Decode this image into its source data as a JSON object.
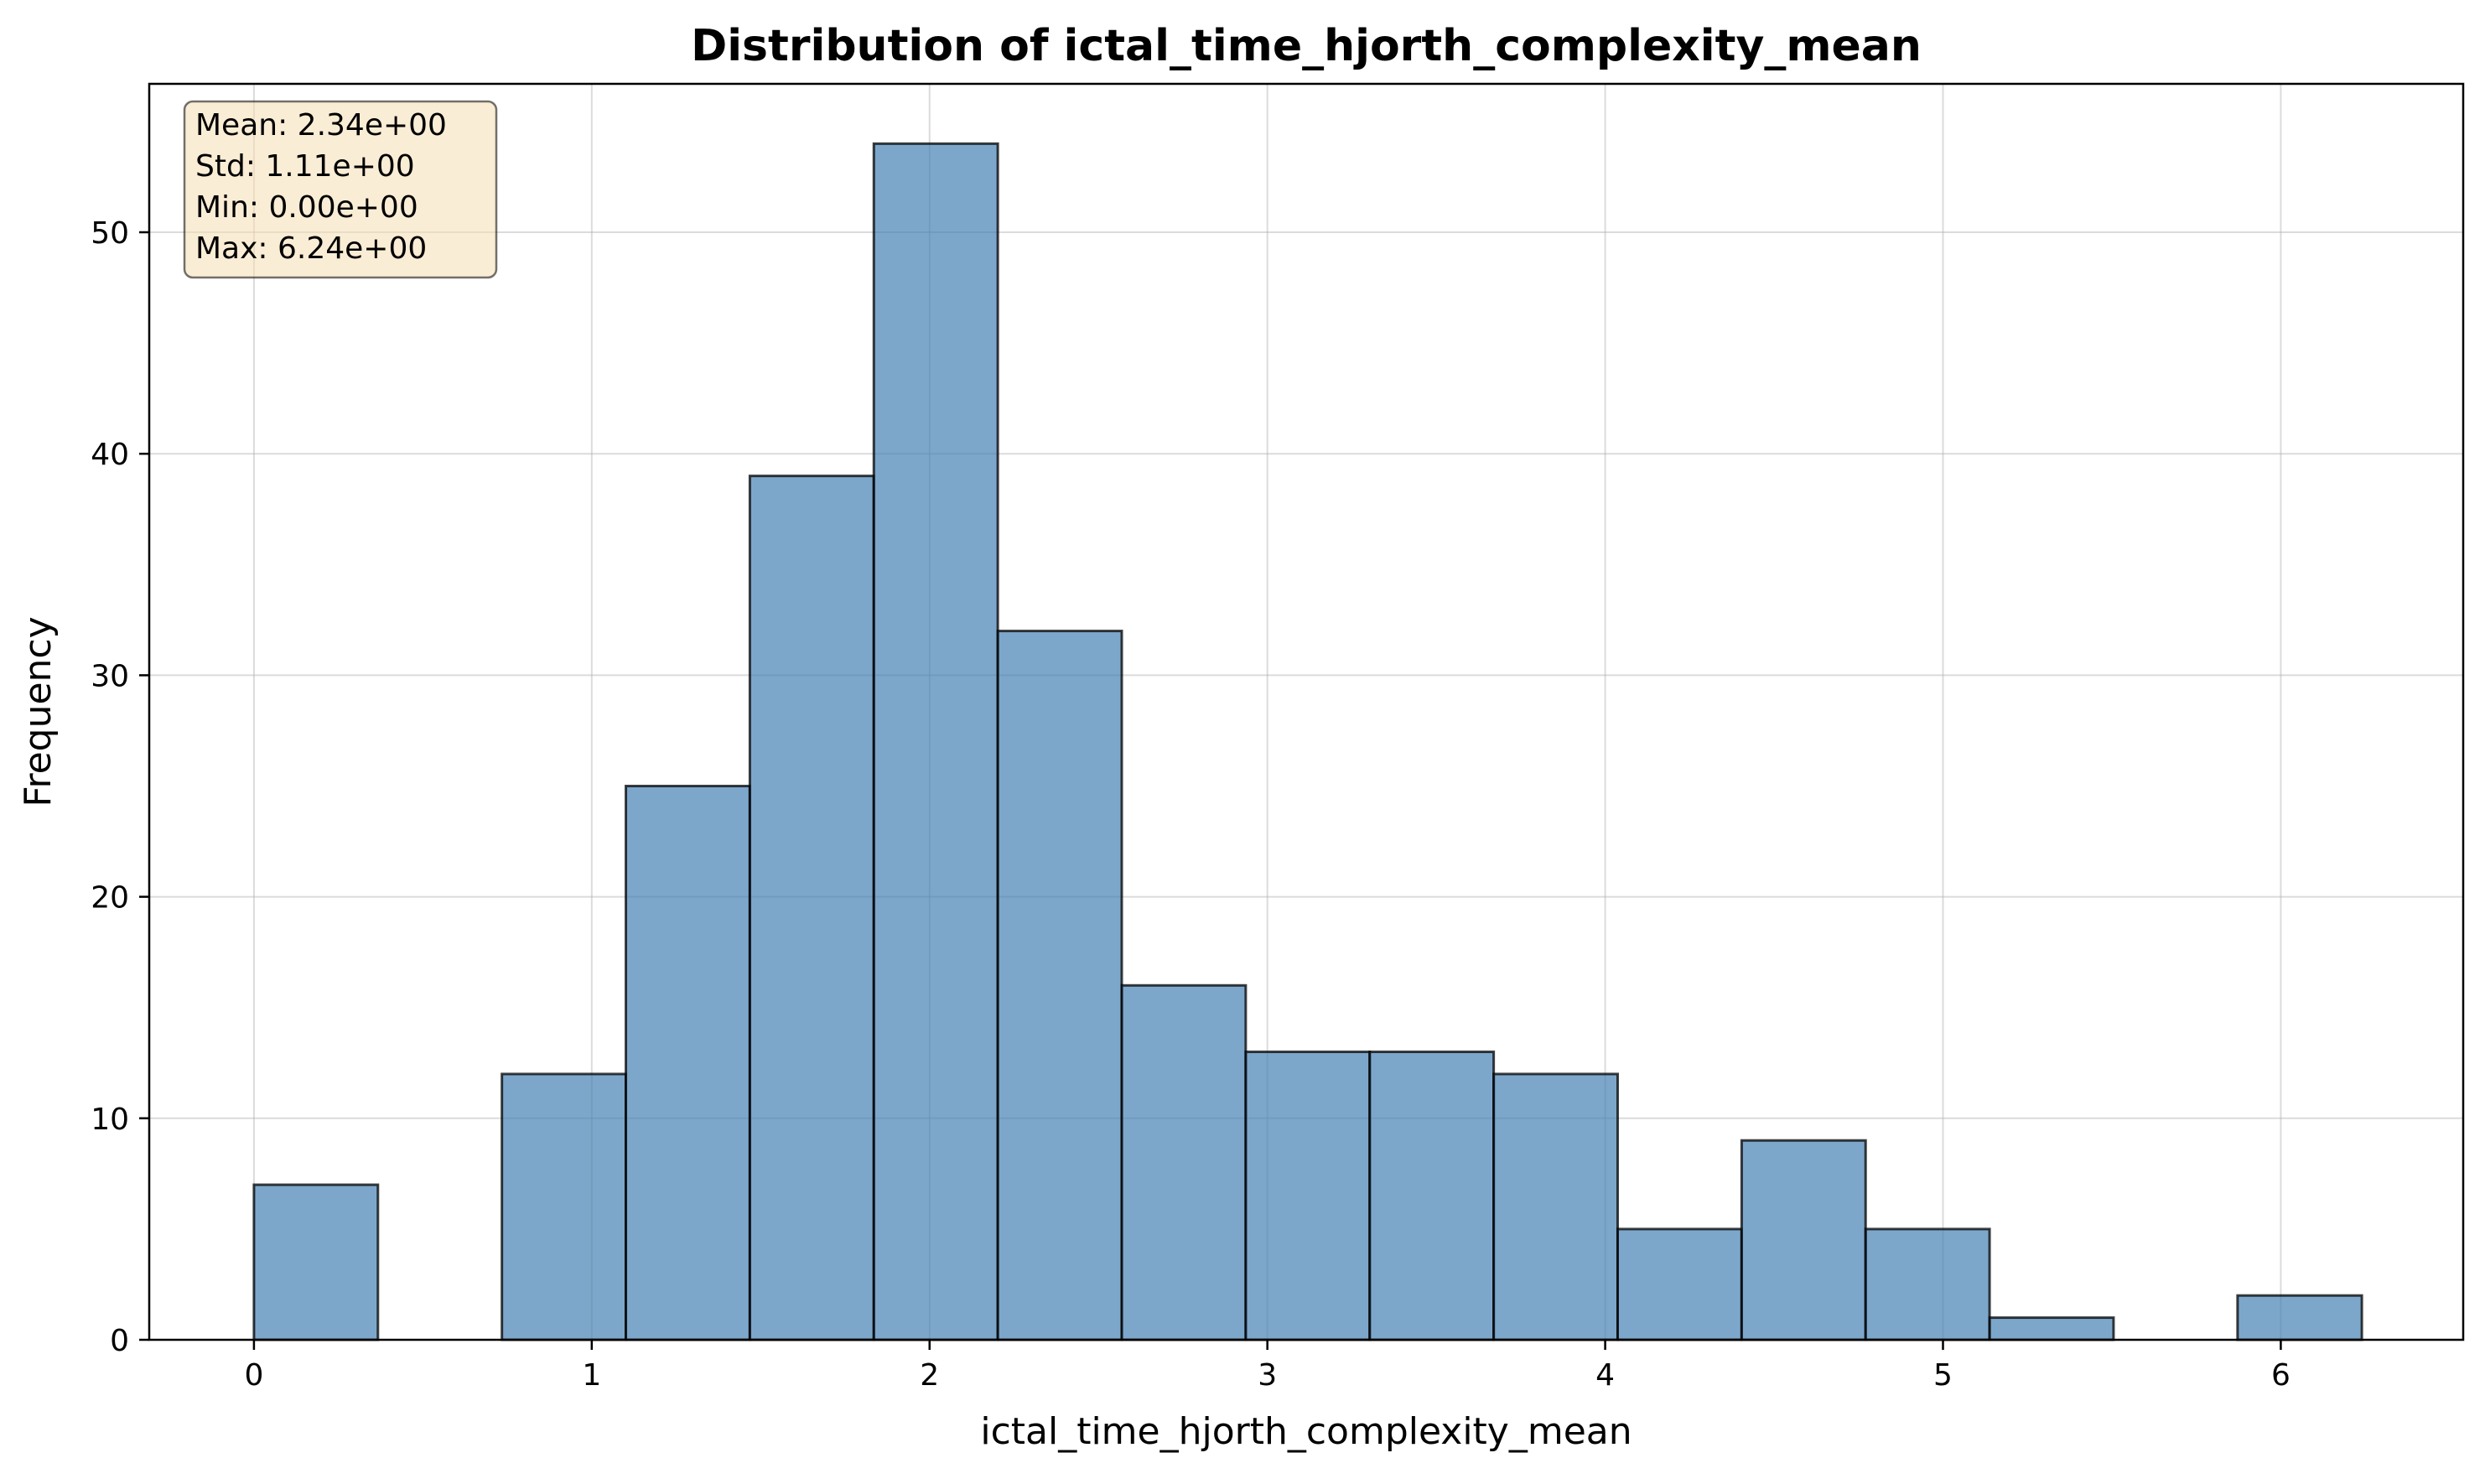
{
  "chart_data": {
    "type": "bar",
    "title": "Distribution of ictal_time_hjorth_complexity_mean",
    "xlabel": "ictal_time_hjorth_complexity_mean",
    "ylabel": "Frequency",
    "xlim": [
      -0.31,
      6.54
    ],
    "ylim": [
      0,
      56.7
    ],
    "xticks": [
      0,
      1,
      2,
      3,
      4,
      5,
      6
    ],
    "yticks": [
      0,
      10,
      20,
      30,
      40,
      50
    ],
    "bin_edges": [
      0.0,
      0.367,
      0.734,
      1.101,
      1.468,
      1.835,
      2.202,
      2.569,
      2.936,
      3.303,
      3.67,
      4.037,
      4.404,
      4.771,
      5.138,
      5.505,
      5.872,
      6.24
    ],
    "values": [
      7,
      0,
      12,
      25,
      39,
      54,
      32,
      16,
      13,
      13,
      12,
      5,
      9,
      5,
      1,
      0,
      2
    ],
    "grid": true,
    "colors": {
      "bar_fill": "#4682b4",
      "bar_edge": "#000000",
      "stats_box_fill": "#f5deb3",
      "grid": "#b0b0b0"
    },
    "stats_box": {
      "lines": [
        "Mean: 2.34e+00",
        "Std: 1.11e+00",
        "Min: 0.00e+00",
        "Max: 6.24e+00"
      ],
      "placement": "top-left"
    }
  }
}
